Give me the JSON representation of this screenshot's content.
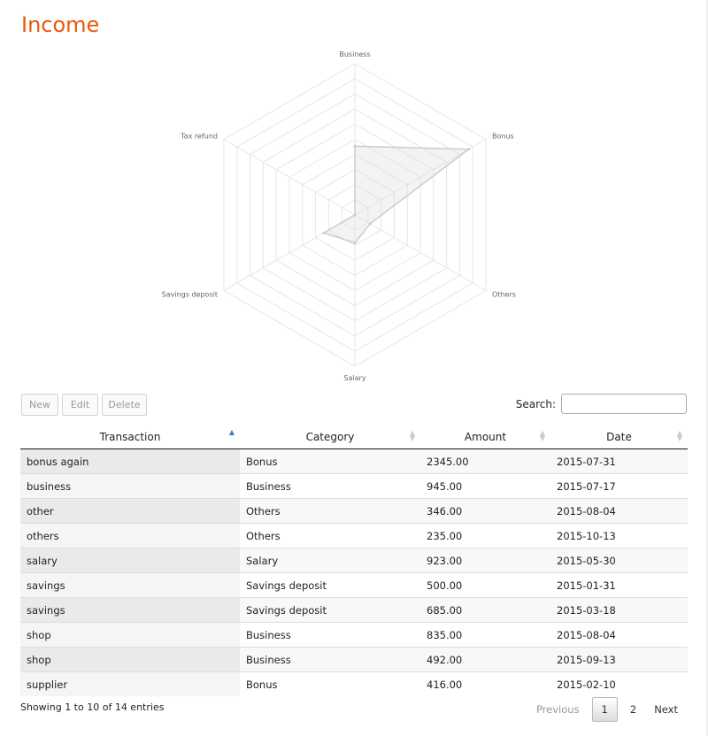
{
  "page": {
    "title": "Income"
  },
  "chart_data": {
    "type": "radar",
    "axes": [
      "Business",
      "Bonus",
      "Others",
      "Salary",
      "Savings deposit",
      "Tax refund"
    ],
    "values": [
      2272,
      4346,
      581,
      923,
      1185,
      0
    ],
    "rmax": 5000,
    "rings": 10,
    "grid": true
  },
  "toolbar": {
    "new_label": "New",
    "edit_label": "Edit",
    "delete_label": "Delete"
  },
  "search": {
    "label": "Search:",
    "value": ""
  },
  "table": {
    "columns": [
      "Transaction",
      "Category",
      "Amount",
      "Date"
    ],
    "sorted_column": "Transaction",
    "rows": [
      [
        "bonus again",
        "Bonus",
        "2345.00",
        "2015-07-31"
      ],
      [
        "business",
        "Business",
        "945.00",
        "2015-07-17"
      ],
      [
        "other",
        "Others",
        "346.00",
        "2015-08-04"
      ],
      [
        "others",
        "Others",
        "235.00",
        "2015-10-13"
      ],
      [
        "salary",
        "Salary",
        "923.00",
        "2015-05-30"
      ],
      [
        "savings",
        "Savings deposit",
        "500.00",
        "2015-01-31"
      ],
      [
        "savings",
        "Savings deposit",
        "685.00",
        "2015-03-18"
      ],
      [
        "shop",
        "Business",
        "835.00",
        "2015-08-04"
      ],
      [
        "shop",
        "Business",
        "492.00",
        "2015-09-13"
      ],
      [
        "supplier",
        "Bonus",
        "416.00",
        "2015-02-10"
      ]
    ]
  },
  "footer": {
    "info": "Showing 1 to 10 of 14 entries"
  },
  "pagination": {
    "previous": "Previous",
    "pages": [
      "1",
      "2"
    ],
    "current": "1",
    "next": "Next"
  }
}
